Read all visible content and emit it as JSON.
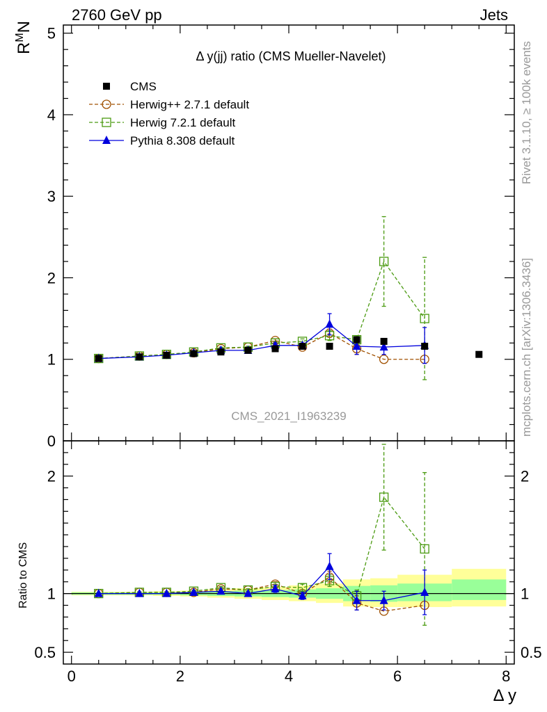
{
  "header": {
    "left": "2760 GeV pp",
    "right": "Jets"
  },
  "side": {
    "rivet": "Rivet 3.1.10, ≥ 100k events",
    "mcplots": "mcplots.cern.ch [arXiv:1306.3436]"
  },
  "chart_data": {
    "type": "scatter",
    "title": "Δ y(jj) ratio (CMS Mueller-Navelet)",
    "analysis_id": "CMS_2021_I1963239",
    "xlabel": "Δ y",
    "ylabel_main": "R^M_N",
    "ylabel_ratio": "Ratio to CMS",
    "xlim": [
      -0.15,
      8.15
    ],
    "ylim_main": [
      0,
      5.1
    ],
    "ylim_ratio": [
      0.4,
      2.3
    ],
    "x_ticks": [
      0,
      2,
      4,
      6,
      8
    ],
    "y_ticks_main": [
      0,
      1,
      2,
      3,
      4,
      5
    ],
    "y_ticks_ratio": [
      0.5,
      1,
      2
    ],
    "x_tick_labels": [
      "0",
      "2",
      "4",
      "6",
      "8"
    ],
    "y_tick_labels_main": [
      "0",
      "1",
      "2",
      "3",
      "4",
      "5"
    ],
    "y_tick_labels_ratio": [
      "0.5",
      "1",
      "2"
    ],
    "legend_placement": "top-left",
    "cms": {
      "name": "CMS",
      "x": [
        0.5,
        1.25,
        1.75,
        2.25,
        2.75,
        3.25,
        3.75,
        4.25,
        4.75,
        5.25,
        5.75,
        6.5,
        7.5
      ],
      "y": [
        1.01,
        1.03,
        1.05,
        1.07,
        1.09,
        1.11,
        1.13,
        1.16,
        1.16,
        1.24,
        1.22,
        1.16,
        1.06
      ],
      "band_edges": [
        0,
        1,
        1.5,
        2,
        2.5,
        3,
        3.5,
        4,
        4.5,
        5,
        5.5,
        6,
        7,
        8
      ],
      "band_inner_lo": [
        0.99,
        0.99,
        0.99,
        0.985,
        0.98,
        0.975,
        0.97,
        0.965,
        0.955,
        0.935,
        0.93,
        0.935,
        0.945
      ],
      "band_inner_hi": [
        1.01,
        1.01,
        1.01,
        1.015,
        1.02,
        1.025,
        1.03,
        1.035,
        1.045,
        1.065,
        1.07,
        1.085,
        1.12
      ],
      "band_outer_lo": [
        0.985,
        0.985,
        0.98,
        0.975,
        0.965,
        0.955,
        0.945,
        0.935,
        0.92,
        0.89,
        0.885,
        0.885,
        0.89
      ],
      "band_outer_hi": [
        1.015,
        1.015,
        1.02,
        1.025,
        1.035,
        1.045,
        1.055,
        1.07,
        1.085,
        1.12,
        1.13,
        1.16,
        1.21
      ]
    },
    "series": [
      {
        "name": "Herwig++ 2.7.1 default",
        "color": "#a05000",
        "marker": "circle",
        "dash": "5,3",
        "x": [
          0.5,
          1.25,
          1.75,
          2.25,
          2.75,
          3.25,
          3.75,
          4.25,
          4.75,
          5.25,
          5.75,
          6.5
        ],
        "y": [
          1.01,
          1.04,
          1.06,
          1.08,
          1.13,
          1.15,
          1.23,
          1.15,
          1.32,
          1.13,
          1.0,
          1.0
        ],
        "yerr": [
          0.01,
          0.01,
          0.01,
          0.01,
          0.01,
          0.01,
          0.02,
          0.02,
          0.05,
          0.07,
          0.0,
          0.0
        ],
        "ratio": [
          1.0,
          1.01,
          1.01,
          1.01,
          1.04,
          1.03,
          1.08,
          1.0,
          1.14,
          0.92,
          0.85,
          0.9
        ],
        "ratio_err": [
          0.005,
          0.005,
          0.005,
          0.005,
          0.01,
          0.01,
          0.02,
          0.02,
          0.05,
          0.06,
          0.0,
          0.0
        ]
      },
      {
        "name": "Herwig 7.2.1 default",
        "color": "#4a9a10",
        "marker": "square",
        "dash": "5,3",
        "x": [
          0.5,
          1.25,
          1.75,
          2.25,
          2.75,
          3.25,
          3.75,
          4.25,
          4.75,
          5.25,
          5.75,
          6.5
        ],
        "y": [
          1.01,
          1.04,
          1.06,
          1.09,
          1.14,
          1.15,
          1.2,
          1.22,
          1.29,
          1.24,
          2.2,
          1.5
        ],
        "yerr": [
          0.01,
          0.01,
          0.01,
          0.01,
          0.01,
          0.01,
          0.02,
          0.03,
          0.06,
          0.05,
          0.55,
          0.75
        ],
        "ratio": [
          1.0,
          1.01,
          1.01,
          1.02,
          1.05,
          1.03,
          1.06,
          1.05,
          1.11,
          0.98,
          1.82,
          1.38
        ],
        "ratio_err": [
          0.005,
          0.005,
          0.005,
          0.01,
          0.01,
          0.01,
          0.02,
          0.03,
          0.05,
          0.05,
          0.45,
          0.65
        ]
      },
      {
        "name": "Pythia 8.308 default",
        "color": "#0000dd",
        "marker": "triangle",
        "dash": "",
        "x": [
          0.5,
          1.25,
          1.75,
          2.25,
          2.75,
          3.25,
          3.75,
          4.25,
          4.75,
          5.25,
          5.75,
          6.5
        ],
        "y": [
          1.01,
          1.03,
          1.05,
          1.08,
          1.11,
          1.11,
          1.17,
          1.17,
          1.43,
          1.16,
          1.15,
          1.17
        ],
        "yerr": [
          0.01,
          0.01,
          0.01,
          0.01,
          0.01,
          0.01,
          0.03,
          0.03,
          0.13,
          0.1,
          0.09,
          0.22
        ],
        "ratio": [
          1.0,
          1.0,
          1.0,
          1.01,
          1.02,
          1.0,
          1.04,
          0.98,
          1.23,
          0.94,
          0.94,
          1.01
        ],
        "ratio_err": [
          0.005,
          0.005,
          0.005,
          0.01,
          0.01,
          0.01,
          0.03,
          0.03,
          0.11,
          0.08,
          0.08,
          0.19
        ]
      }
    ]
  }
}
